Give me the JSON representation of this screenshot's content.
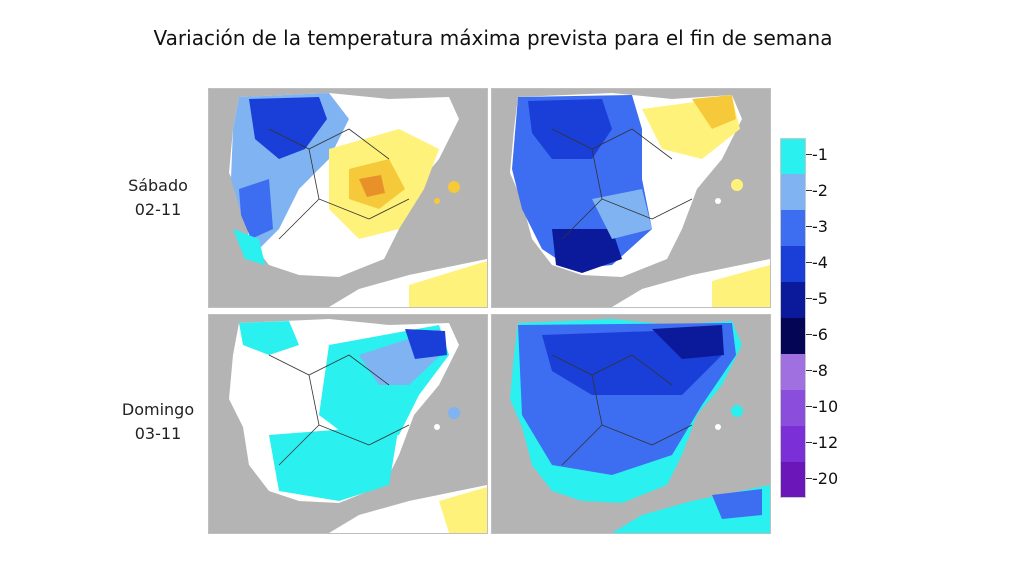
{
  "title": "Variación de la temperatura  máxima prevista para el fin de semana",
  "rows": [
    {
      "day": "Sábado",
      "date": "02-11"
    },
    {
      "day": "Domingo",
      "date": "03-11"
    }
  ],
  "legend": {
    "labels": [
      "-1",
      "-2",
      "-3",
      "-4",
      "-5",
      "-6",
      "-8",
      "-10",
      "-12",
      "-20"
    ],
    "colors": [
      "#2af0f0",
      "#7fb3f2",
      "#3d6df0",
      "#1a3ed8",
      "#0a1a9a",
      "#050556",
      "#a070e0",
      "#8a4ddc",
      "#7a30d6",
      "#6a16b8"
    ]
  },
  "palette": {
    "sea": "#b4b4b4",
    "land_neutral": "#ffffff",
    "warm_light": "#fff27a",
    "warm": "#f5c93a",
    "warm_strong": "#e8902a",
    "cool_1": "#2af0f0",
    "cool_2": "#7fb3f2",
    "cool_3": "#3d6df0",
    "cool_4": "#1a3ed8",
    "cool_5": "#0a1a9a",
    "cool_6": "#a070e0",
    "border_line": "#333333"
  }
}
